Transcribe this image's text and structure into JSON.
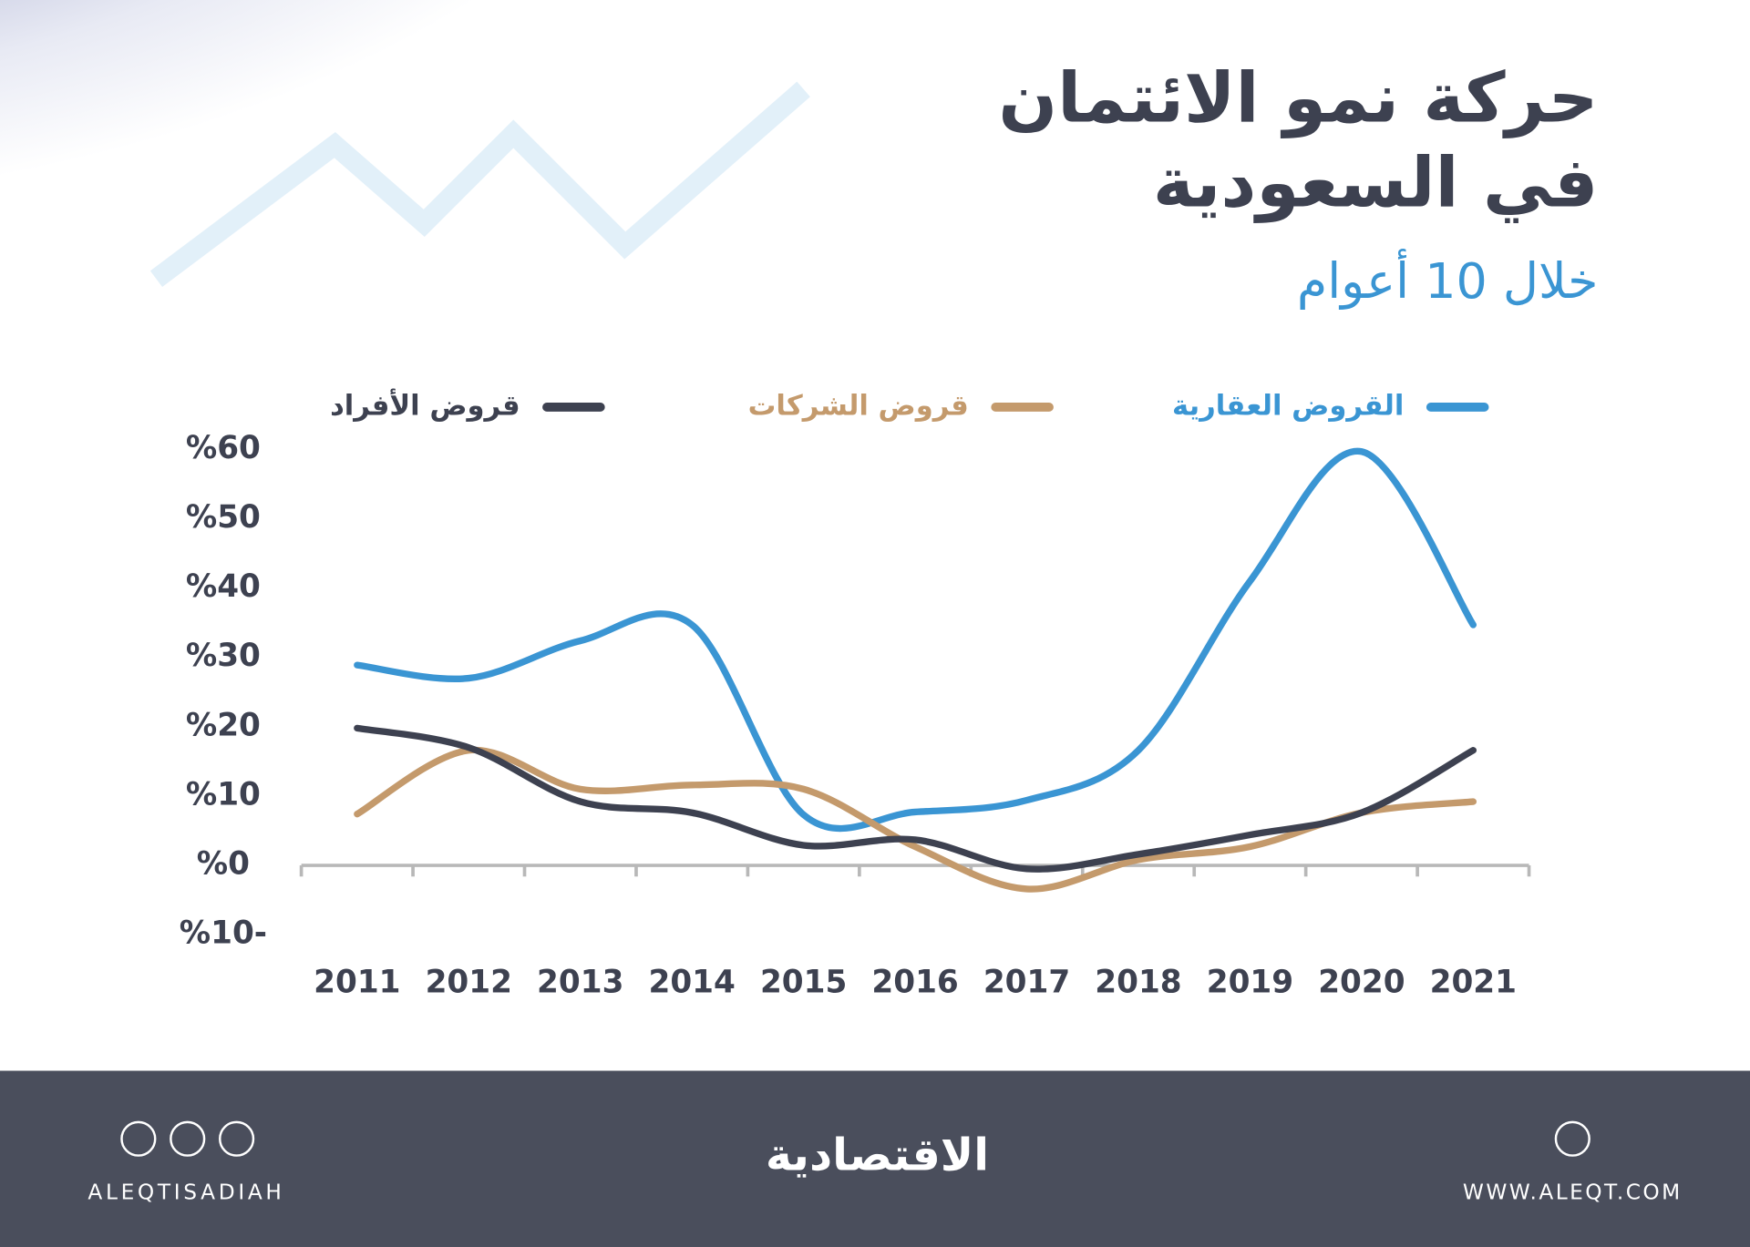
{
  "chart_data": {
    "type": "line",
    "title": "حركة نمو الائتمان",
    "title_line2": "في السعودية",
    "subtitle": "خلال 10 أعوام",
    "categories": [
      "2011",
      "2012",
      "2013",
      "2014",
      "2015",
      "2016",
      "2017",
      "2018",
      "2019",
      "2020",
      "2021"
    ],
    "series": [
      {
        "name": "القروض العقارية",
        "color": "#3a95d3",
        "values": [
          28.9,
          27,
          32.4,
          34.7,
          7.3,
          7.7,
          9.4,
          16.6,
          41,
          59.7,
          34.7
        ]
      },
      {
        "name": "قروض الشركات",
        "color": "#c49a6c",
        "values": [
          7.4,
          16.6,
          11,
          11.6,
          11,
          2.7,
          -3.4,
          0.8,
          2.7,
          7.6,
          9.2
        ]
      },
      {
        "name": "قروض الأفراد",
        "color": "#3d4150",
        "values": [
          19.8,
          17,
          9.2,
          7.6,
          2.9,
          3.7,
          -0.5,
          1.6,
          4.4,
          7.6,
          16.6
        ]
      }
    ],
    "ylim": [
      -10,
      60
    ],
    "yticks": [
      {
        "value": -10,
        "label": "%10-"
      },
      {
        "value": 0,
        "label": "%0"
      },
      {
        "value": 10,
        "label": "%10"
      },
      {
        "value": 20,
        "label": "%20"
      },
      {
        "value": 30,
        "label": "%30"
      },
      {
        "value": 40,
        "label": "%40"
      },
      {
        "value": 50,
        "label": "%50"
      },
      {
        "value": 60,
        "label": "%60"
      }
    ],
    "grid": false
  },
  "footer": {
    "handle": "ALEQTISADIAH",
    "brand": "الاقتصادية",
    "website": "WWW.ALEQT.COM"
  }
}
